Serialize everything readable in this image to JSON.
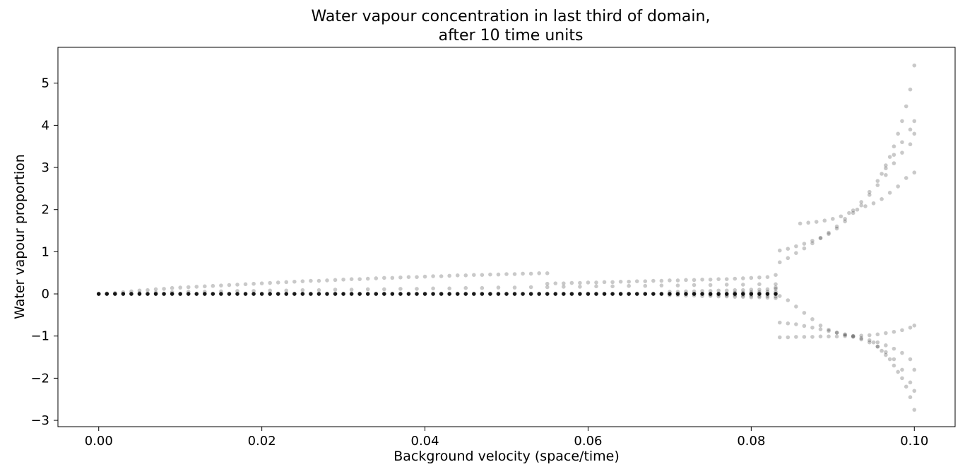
{
  "chart_data": {
    "type": "scatter",
    "title_line1": "Water vapour concentration in last third of domain,",
    "title_line2": "after 10 time units",
    "xlabel": "Background velocity (space/time)",
    "ylabel": "Water vapour proportion",
    "xlim": [
      -0.005,
      0.105
    ],
    "ylim": [
      -3.15,
      5.85
    ],
    "xticks": [
      0.0,
      0.02,
      0.04,
      0.06,
      0.08,
      0.1
    ],
    "xtick_labels": [
      "0.00",
      "0.02",
      "0.04",
      "0.06",
      "0.08",
      "0.10"
    ],
    "yticks": [
      -3,
      -2,
      -1,
      0,
      1,
      2,
      3,
      4,
      5
    ],
    "ytick_labels": [
      "−3",
      "−2",
      "−1",
      "0",
      "1",
      "2",
      "3",
      "4",
      "5"
    ],
    "grid": false,
    "marker_color": "#000000",
    "marker_alpha": 0.15,
    "series": [
      {
        "description_free": true,
        "x": [
          0.0,
          0.001,
          0.002,
          0.003,
          0.004,
          0.005,
          0.006,
          0.007,
          0.008,
          0.009,
          0.01,
          0.011,
          0.012,
          0.013,
          0.014,
          0.015,
          0.016,
          0.017,
          0.018,
          0.019,
          0.02,
          0.021,
          0.022,
          0.023,
          0.024,
          0.025,
          0.026,
          0.027,
          0.028,
          0.029,
          0.03,
          0.031,
          0.032,
          0.033,
          0.034,
          0.035,
          0.036,
          0.037,
          0.038,
          0.039,
          0.04,
          0.041,
          0.042,
          0.043,
          0.044,
          0.045,
          0.046,
          0.047,
          0.048,
          0.049,
          0.05,
          0.051,
          0.052,
          0.053,
          0.054,
          0.055,
          0.056,
          0.057,
          0.058,
          0.059,
          0.06,
          0.061,
          0.062,
          0.063,
          0.064,
          0.065,
          0.066,
          0.067,
          0.068,
          0.069,
          0.07,
          0.071,
          0.072,
          0.073,
          0.074,
          0.075,
          0.076,
          0.077,
          0.078,
          0.079,
          0.08,
          0.081,
          0.082,
          0.083
        ],
        "y": [
          0,
          0,
          0,
          0,
          0,
          0,
          0,
          0,
          0,
          0,
          0,
          0,
          0,
          0,
          0,
          0,
          0,
          0,
          0,
          0,
          0,
          0,
          0,
          0,
          0,
          0,
          0,
          0,
          0,
          0,
          0,
          0,
          0,
          0,
          0,
          0,
          0,
          0,
          0,
          0,
          0,
          0,
          0,
          0,
          0,
          0,
          0,
          0,
          0,
          0,
          0,
          0,
          0,
          0,
          0,
          0,
          0,
          0,
          0,
          0,
          0,
          0,
          0,
          0,
          0,
          0,
          0,
          0,
          0,
          0,
          0,
          0,
          0,
          0,
          0,
          0,
          0,
          0,
          0,
          0,
          0,
          0,
          0,
          0
        ]
      },
      {
        "x": [
          0.0,
          0.001,
          0.002,
          0.003,
          0.004,
          0.005,
          0.006,
          0.007,
          0.008,
          0.009,
          0.01,
          0.011,
          0.012,
          0.013,
          0.014,
          0.015,
          0.016,
          0.017,
          0.018,
          0.019,
          0.02,
          0.021,
          0.022,
          0.023,
          0.024,
          0.025,
          0.026,
          0.027,
          0.028,
          0.029,
          0.03,
          0.031,
          0.032,
          0.033,
          0.034,
          0.035,
          0.036,
          0.037,
          0.038,
          0.039,
          0.04,
          0.041,
          0.042,
          0.043,
          0.044,
          0.045,
          0.046,
          0.047,
          0.048,
          0.049,
          0.05,
          0.051,
          0.052,
          0.053,
          0.054,
          0.055
        ],
        "y": [
          0.0,
          0.01,
          0.02,
          0.04,
          0.06,
          0.08,
          0.09,
          0.11,
          0.12,
          0.14,
          0.15,
          0.16,
          0.17,
          0.18,
          0.19,
          0.2,
          0.21,
          0.22,
          0.23,
          0.24,
          0.25,
          0.26,
          0.27,
          0.28,
          0.29,
          0.3,
          0.31,
          0.31,
          0.32,
          0.33,
          0.34,
          0.35,
          0.35,
          0.36,
          0.37,
          0.38,
          0.38,
          0.39,
          0.4,
          0.4,
          0.41,
          0.42,
          0.42,
          0.43,
          0.44,
          0.44,
          0.45,
          0.45,
          0.46,
          0.46,
          0.47,
          0.47,
          0.48,
          0.48,
          0.49,
          0.49
        ]
      },
      {
        "x": [
          0.005,
          0.007,
          0.009,
          0.011,
          0.013,
          0.015,
          0.017,
          0.019,
          0.021,
          0.023,
          0.025,
          0.027,
          0.029,
          0.031,
          0.033,
          0.035,
          0.037,
          0.039,
          0.041,
          0.043,
          0.045,
          0.047,
          0.049,
          0.051,
          0.053,
          0.055,
          0.057,
          0.059,
          0.061,
          0.063,
          0.065,
          0.067,
          0.069,
          0.071,
          0.073,
          0.075,
          0.077,
          0.079,
          0.081,
          0.083
        ],
        "y": [
          0.02,
          0.03,
          0.04,
          0.05,
          0.05,
          0.06,
          0.07,
          0.07,
          0.08,
          0.08,
          0.09,
          0.09,
          0.1,
          0.1,
          0.11,
          0.11,
          0.12,
          0.12,
          0.13,
          0.13,
          0.14,
          0.14,
          0.15,
          0.15,
          0.16,
          0.16,
          0.17,
          0.17,
          0.18,
          0.18,
          0.19,
          0.19,
          0.2,
          0.2,
          0.21,
          0.21,
          0.22,
          0.22,
          0.23,
          0.23
        ]
      },
      {
        "x": [
          0.055,
          0.056,
          0.057,
          0.058,
          0.059,
          0.06,
          0.061,
          0.062,
          0.063,
          0.064,
          0.065,
          0.066,
          0.067,
          0.068,
          0.069,
          0.07,
          0.071,
          0.072,
          0.073,
          0.074,
          0.075,
          0.076,
          0.077,
          0.078,
          0.079,
          0.08,
          0.081,
          0.082,
          0.083
        ],
        "y": [
          0.24,
          0.25,
          0.25,
          0.26,
          0.26,
          0.27,
          0.27,
          0.28,
          0.28,
          0.29,
          0.29,
          0.3,
          0.3,
          0.31,
          0.31,
          0.32,
          0.32,
          0.33,
          0.33,
          0.34,
          0.34,
          0.35,
          0.35,
          0.36,
          0.37,
          0.38,
          0.39,
          0.4,
          0.45
        ]
      },
      {
        "x": [
          0.07,
          0.071,
          0.072,
          0.073,
          0.074,
          0.075,
          0.076,
          0.077,
          0.078,
          0.079,
          0.08,
          0.081,
          0.082,
          0.083,
          0.07,
          0.071,
          0.072,
          0.073,
          0.074,
          0.075,
          0.076,
          0.077,
          0.078,
          0.079,
          0.08,
          0.081,
          0.082,
          0.083,
          0.075,
          0.076,
          0.077,
          0.078,
          0.079,
          0.08,
          0.081,
          0.082,
          0.083,
          0.078,
          0.079,
          0.08,
          0.081,
          0.082,
          0.083,
          0.083
        ],
        "y": [
          -0.03,
          -0.03,
          -0.04,
          -0.04,
          -0.05,
          -0.05,
          -0.06,
          -0.06,
          -0.07,
          -0.07,
          -0.08,
          -0.08,
          -0.09,
          -0.1,
          0.05,
          0.05,
          0.06,
          0.06,
          0.07,
          0.07,
          0.08,
          0.08,
          0.09,
          0.09,
          0.1,
          0.1,
          0.11,
          0.12,
          -0.02,
          -0.02,
          -0.03,
          -0.03,
          -0.04,
          -0.04,
          -0.05,
          -0.05,
          -0.06,
          0.03,
          0.03,
          0.04,
          0.04,
          0.05,
          0.05,
          0.15
        ]
      },
      {
        "x": [
          0.0835,
          0.0845,
          0.0855,
          0.0865,
          0.0875,
          0.0885,
          0.0895,
          0.0905,
          0.0915,
          0.0925,
          0.0935,
          0.0945,
          0.0955,
          0.0965,
          0.0975,
          0.0985,
          0.0995,
          0.1
        ],
        "y": [
          1.03,
          1.07,
          1.13,
          1.19,
          1.26,
          1.33,
          1.42,
          1.55,
          1.72,
          1.92,
          2.1,
          2.35,
          2.58,
          2.82,
          3.1,
          3.35,
          3.55,
          3.8
        ]
      },
      {
        "x": [
          0.0835,
          0.0845,
          0.0855,
          0.0865,
          0.0875,
          0.0885,
          0.0895,
          0.0905,
          0.0915,
          0.0925,
          0.0935,
          0.0945,
          0.0955,
          0.0965,
          0.0975,
          0.0985,
          0.0995,
          0.1
        ],
        "y": [
          0.75,
          0.85,
          0.97,
          1.08,
          1.2,
          1.32,
          1.45,
          1.6,
          1.78,
          1.98,
          2.18,
          2.42,
          2.68,
          2.98,
          3.3,
          3.6,
          3.9,
          4.1
        ]
      },
      {
        "x": [
          0.086,
          0.087,
          0.088,
          0.089,
          0.09,
          0.091,
          0.092,
          0.093,
          0.094,
          0.095,
          0.096,
          0.097,
          0.098,
          0.099,
          0.1
        ],
        "y": [
          1.67,
          1.69,
          1.71,
          1.74,
          1.78,
          1.84,
          1.92,
          2.0,
          2.08,
          2.15,
          2.25,
          2.4,
          2.55,
          2.75,
          2.88
        ]
      },
      {
        "x": [
          0.096,
          0.0965,
          0.097,
          0.0975,
          0.098,
          0.0985,
          0.099,
          0.0995,
          0.1
        ],
        "y": [
          2.85,
          3.05,
          3.25,
          3.5,
          3.8,
          4.1,
          4.45,
          4.85,
          5.42
        ]
      },
      {
        "x": [
          0.0835,
          0.0845,
          0.0855,
          0.0865,
          0.0875,
          0.0885,
          0.0895,
          0.0905,
          0.0915,
          0.0925,
          0.0935,
          0.0945,
          0.0955,
          0.0965,
          0.0975,
          0.0985,
          0.0995,
          0.1
        ],
        "y": [
          -1.03,
          -1.03,
          -1.02,
          -1.02,
          -1.02,
          -1.01,
          -1.01,
          -1.01,
          -1.0,
          -1.0,
          -0.99,
          -0.98,
          -0.96,
          -0.93,
          -0.9,
          -0.86,
          -0.8,
          -0.75
        ]
      },
      {
        "x": [
          0.0835,
          0.0845,
          0.0855,
          0.0865,
          0.0875,
          0.0885,
          0.0895,
          0.0905,
          0.0915,
          0.0925,
          0.0935,
          0.0945,
          0.0955,
          0.0965,
          0.0975,
          0.0985,
          0.0995,
          0.1
        ],
        "y": [
          -0.05,
          -0.15,
          -0.3,
          -0.45,
          -0.6,
          -0.75,
          -0.85,
          -0.92,
          -0.97,
          -1.02,
          -1.08,
          -1.15,
          -1.25,
          -1.38,
          -1.55,
          -1.8,
          -2.1,
          -2.75
        ]
      },
      {
        "x": [
          0.0835,
          0.0845,
          0.0855,
          0.0865,
          0.0875,
          0.0885,
          0.0895,
          0.0905,
          0.0915,
          0.0925,
          0.0935,
          0.0945,
          0.0955,
          0.0965,
          0.0975,
          0.0985,
          0.0995,
          0.1
        ],
        "y": [
          -0.68,
          -0.7,
          -0.72,
          -0.76,
          -0.8,
          -0.84,
          -0.88,
          -0.92,
          -0.96,
          -1.0,
          -1.05,
          -1.1,
          -1.15,
          -1.22,
          -1.3,
          -1.4,
          -1.55,
          -1.8
        ]
      },
      {
        "x": [
          0.095,
          0.0955,
          0.096,
          0.0965,
          0.097,
          0.0975,
          0.098,
          0.0985,
          0.099,
          0.0995,
          0.1
        ],
        "y": [
          -1.15,
          -1.25,
          -1.35,
          -1.45,
          -1.55,
          -1.7,
          -1.85,
          -2.0,
          -2.2,
          -2.45,
          -2.3
        ]
      }
    ]
  }
}
